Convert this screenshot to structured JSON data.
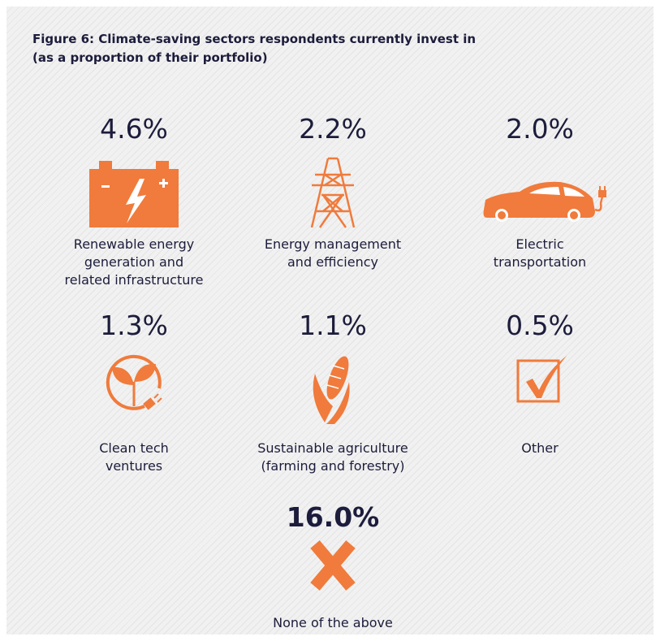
{
  "title": [
    "Figure 6: Climate-saving sectors respondents currently invest in",
    "(as a proportion of their portfolio)"
  ],
  "items": [
    {
      "value": "4.6%",
      "label": [
        "Renewable energy",
        "generation and",
        "related infrastructure"
      ]
    },
    {
      "value": "2.2%",
      "label": [
        "Energy management",
        "and efficiency"
      ]
    },
    {
      "value": "2.0%",
      "label": [
        "Electric",
        "transportation"
      ]
    },
    {
      "value": "1.3%",
      "label": [
        "Clean tech",
        "ventures"
      ]
    },
    {
      "value": "1.1%",
      "label": [
        "Sustainable agriculture",
        "(farming and forestry)"
      ]
    },
    {
      "value": "0.5%",
      "label": [
        "Other"
      ]
    },
    {
      "value": "16.0%",
      "label": [
        "None of the above"
      ]
    }
  ]
}
